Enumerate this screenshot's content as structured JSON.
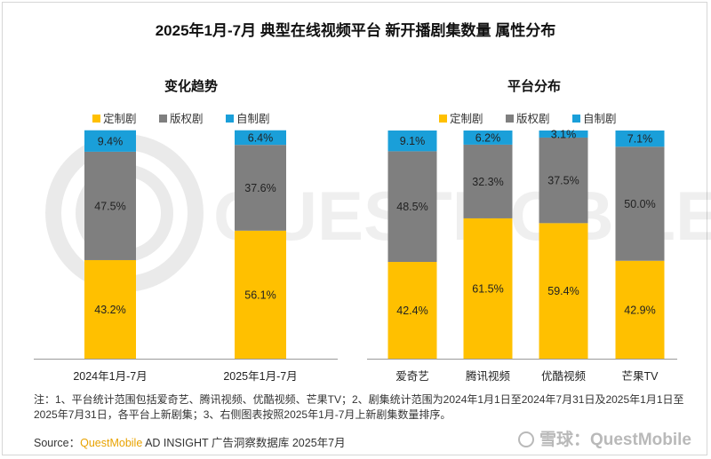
{
  "title": "2025年1月-7月 典型在线视频平台 新开播剧集数量 属性分布",
  "colors": {
    "定制剧": "#ffc000",
    "版权剧": "#7f7f7f",
    "自制剧": "#1a9fd9"
  },
  "chart_data": [
    {
      "type": "bar",
      "stacked": true,
      "title": "变化趋势",
      "categories": [
        "2024年1月-7月",
        "2025年1月-7月"
      ],
      "series": [
        {
          "name": "定制剧",
          "values": [
            43.2,
            56.1
          ],
          "labels": [
            "43.2%",
            "56.1%"
          ]
        },
        {
          "name": "版权剧",
          "values": [
            47.5,
            37.6
          ],
          "labels": [
            "47.5%",
            "37.6%"
          ]
        },
        {
          "name": "自制剧",
          "values": [
            9.4,
            6.4
          ],
          "labels": [
            "9.4%",
            "6.4%"
          ]
        }
      ],
      "ylim": [
        0,
        100
      ],
      "legend": "top"
    },
    {
      "type": "bar",
      "stacked": true,
      "title": "平台分布",
      "categories": [
        "爱奇艺",
        "腾讯视频",
        "优酷视频",
        "芒果TV"
      ],
      "series": [
        {
          "name": "定制剧",
          "values": [
            42.4,
            61.5,
            59.4,
            42.9
          ],
          "labels": [
            "42.4%",
            "61.5%",
            "59.4%",
            "42.9%"
          ]
        },
        {
          "name": "版权剧",
          "values": [
            48.5,
            32.3,
            37.5,
            50.0
          ],
          "labels": [
            "48.5%",
            "32.3%",
            "37.5%",
            "50.0%"
          ]
        },
        {
          "name": "自制剧",
          "values": [
            9.1,
            6.2,
            3.1,
            7.1
          ],
          "labels": [
            "9.1%",
            "6.2%",
            "3.1%",
            "7.1%"
          ]
        }
      ],
      "ylim": [
        0,
        100
      ],
      "legend": "top"
    }
  ],
  "note": "注：1、平台统计范围包括爱奇艺、腾讯视频、优酷视频、芒果TV；2、剧集统计范围为2024年1月1日至2024年7月31日及2025年1月1日至2025年7月31日，各平台上新剧集；3、右侧图表按照2025年1月-7月上新剧集数量排序。",
  "source": {
    "prefix": "Source：",
    "brand": "QuestMobile",
    "suffix": " AD INSIGHT 广告洞察数据库 2025年7月"
  },
  "watermark_text": "QUESTMOBILE",
  "logo_text": "雪球：QuestMobile"
}
